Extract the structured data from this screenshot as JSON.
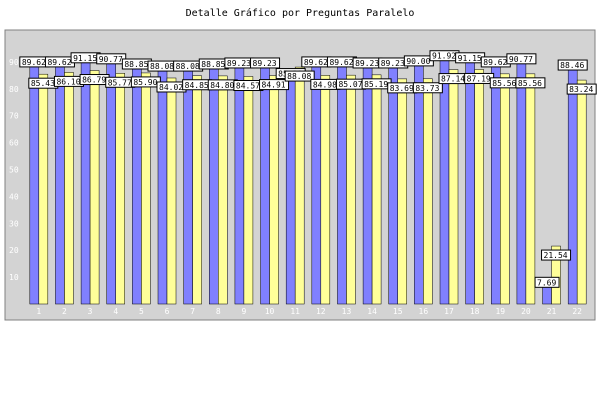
{
  "chart_data": {
    "type": "bar",
    "title": "Detalle Gráfico por Preguntas Paralelo",
    "categories": [
      "1",
      "2",
      "3",
      "4",
      "5",
      "6",
      "7",
      "8",
      "9",
      "10",
      "11",
      "12",
      "13",
      "14",
      "15",
      "16",
      "17",
      "18",
      "19",
      "20",
      "21",
      "22"
    ],
    "series": [
      {
        "color": "#8080ff",
        "values": [
          89.62,
          89.62,
          91.15,
          90.77,
          88.85,
          88.08,
          88.08,
          88.85,
          89.23,
          89.23,
          85.29,
          89.62,
          89.62,
          89.23,
          89.23,
          90.0,
          91.92,
          91.15,
          89.62,
          90.77,
          7.69,
          88.46
        ]
      },
      {
        "color": "#ffff99",
        "values": [
          85.43,
          86.1,
          86.79,
          85.77,
          85.9,
          84.02,
          84.85,
          84.8,
          84.57,
          84.91,
          88.08,
          84.98,
          85.07,
          85.19,
          83.69,
          83.73,
          87.14,
          87.19,
          85.56,
          85.56,
          21.54,
          83.24
        ]
      }
    ],
    "ylim": [
      0,
      100
    ],
    "yticks": [
      10,
      20,
      30,
      40,
      50,
      60,
      70,
      80,
      90
    ],
    "grid": false,
    "legend": "none"
  },
  "colors": {
    "plot_background": "#d3d3d3",
    "frame": "#808080"
  }
}
